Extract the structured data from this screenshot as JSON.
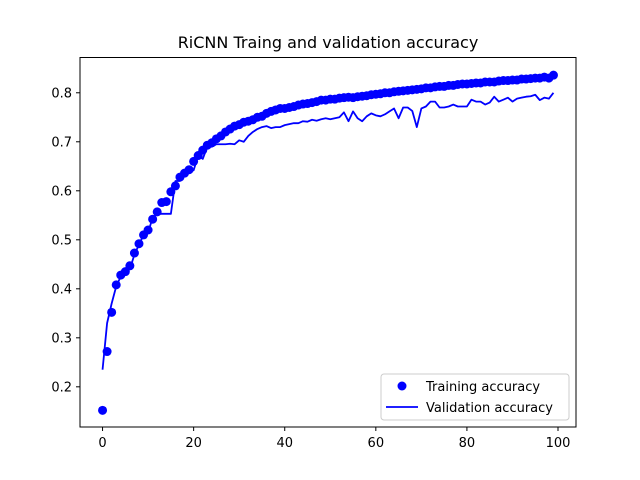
{
  "chart_data": {
    "type": "line",
    "title": "RiCNN Traing and validation accuracy",
    "xlabel": "",
    "ylabel": "",
    "xlim": [
      -4.95,
      103.95
    ],
    "ylim": [
      0.118,
      0.872
    ],
    "xticks": [
      0,
      20,
      40,
      60,
      80,
      100
    ],
    "yticks": [
      0.2,
      0.3,
      0.4,
      0.5,
      0.6,
      0.7,
      0.8
    ],
    "grid": false,
    "legend_position": "lower-right",
    "series": [
      {
        "name": "Training accuracy",
        "style": "markers",
        "color": "#0000ff",
        "x": [
          0,
          1,
          2,
          3,
          4,
          5,
          6,
          7,
          8,
          9,
          10,
          11,
          12,
          13,
          14,
          15,
          16,
          17,
          18,
          19,
          20,
          21,
          22,
          23,
          24,
          25,
          26,
          27,
          28,
          29,
          30,
          31,
          32,
          33,
          34,
          35,
          36,
          37,
          38,
          39,
          40,
          41,
          42,
          43,
          44,
          45,
          46,
          47,
          48,
          49,
          50,
          51,
          52,
          53,
          54,
          55,
          56,
          57,
          58,
          59,
          60,
          61,
          62,
          63,
          64,
          65,
          66,
          67,
          68,
          69,
          70,
          71,
          72,
          73,
          74,
          75,
          76,
          77,
          78,
          79,
          80,
          81,
          82,
          83,
          84,
          85,
          86,
          87,
          88,
          89,
          90,
          91,
          92,
          93,
          94,
          95,
          96,
          97,
          98,
          99
        ],
        "values": [
          0.152,
          0.272,
          0.352,
          0.408,
          0.428,
          0.435,
          0.447,
          0.473,
          0.492,
          0.51,
          0.52,
          0.542,
          0.557,
          0.576,
          0.578,
          0.598,
          0.61,
          0.628,
          0.636,
          0.643,
          0.66,
          0.672,
          0.683,
          0.693,
          0.698,
          0.706,
          0.712,
          0.72,
          0.726,
          0.732,
          0.735,
          0.74,
          0.742,
          0.745,
          0.75,
          0.752,
          0.758,
          0.762,
          0.765,
          0.768,
          0.768,
          0.77,
          0.772,
          0.775,
          0.777,
          0.778,
          0.78,
          0.782,
          0.785,
          0.785,
          0.787,
          0.787,
          0.789,
          0.79,
          0.791,
          0.79,
          0.792,
          0.793,
          0.794,
          0.796,
          0.797,
          0.798,
          0.8,
          0.8,
          0.802,
          0.803,
          0.804,
          0.805,
          0.806,
          0.807,
          0.808,
          0.81,
          0.81,
          0.812,
          0.813,
          0.813,
          0.815,
          0.815,
          0.817,
          0.818,
          0.818,
          0.819,
          0.82,
          0.82,
          0.822,
          0.822,
          0.822,
          0.824,
          0.825,
          0.825,
          0.826,
          0.826,
          0.828,
          0.828,
          0.829,
          0.83,
          0.83,
          0.832,
          0.83,
          0.836
        ]
      },
      {
        "name": "Validation accuracy",
        "style": "line",
        "color": "#0000ff",
        "x": [
          0,
          1,
          2,
          3,
          4,
          5,
          6,
          7,
          8,
          9,
          10,
          11,
          12,
          13,
          14,
          15,
          16,
          17,
          18,
          19,
          20,
          21,
          22,
          23,
          24,
          25,
          26,
          27,
          28,
          29,
          30,
          31,
          32,
          33,
          34,
          35,
          36,
          37,
          38,
          39,
          40,
          41,
          42,
          43,
          44,
          45,
          46,
          47,
          48,
          49,
          50,
          51,
          52,
          53,
          54,
          55,
          56,
          57,
          58,
          59,
          60,
          61,
          62,
          63,
          64,
          65,
          66,
          67,
          68,
          69,
          70,
          71,
          72,
          73,
          74,
          75,
          76,
          77,
          78,
          79,
          80,
          81,
          82,
          83,
          84,
          85,
          86,
          87,
          88,
          89,
          90,
          91,
          92,
          93,
          94,
          95,
          96,
          97,
          98,
          99
        ],
        "values": [
          0.235,
          0.33,
          0.37,
          0.405,
          0.425,
          0.435,
          0.44,
          0.47,
          0.49,
          0.51,
          0.515,
          0.545,
          0.553,
          0.553,
          0.553,
          0.553,
          0.62,
          0.62,
          0.64,
          0.64,
          0.642,
          0.672,
          0.665,
          0.69,
          0.69,
          0.695,
          0.695,
          0.695,
          0.696,
          0.695,
          0.703,
          0.7,
          0.712,
          0.72,
          0.726,
          0.73,
          0.732,
          0.728,
          0.73,
          0.73,
          0.734,
          0.736,
          0.738,
          0.738,
          0.742,
          0.741,
          0.745,
          0.743,
          0.746,
          0.748,
          0.746,
          0.748,
          0.75,
          0.76,
          0.742,
          0.762,
          0.748,
          0.742,
          0.752,
          0.758,
          0.754,
          0.752,
          0.756,
          0.762,
          0.768,
          0.748,
          0.77,
          0.77,
          0.763,
          0.73,
          0.768,
          0.772,
          0.782,
          0.782,
          0.77,
          0.77,
          0.772,
          0.776,
          0.772,
          0.772,
          0.772,
          0.786,
          0.782,
          0.782,
          0.776,
          0.78,
          0.792,
          0.782,
          0.786,
          0.79,
          0.782,
          0.788,
          0.79,
          0.792,
          0.793,
          0.796,
          0.785,
          0.79,
          0.788,
          0.8
        ]
      }
    ]
  }
}
